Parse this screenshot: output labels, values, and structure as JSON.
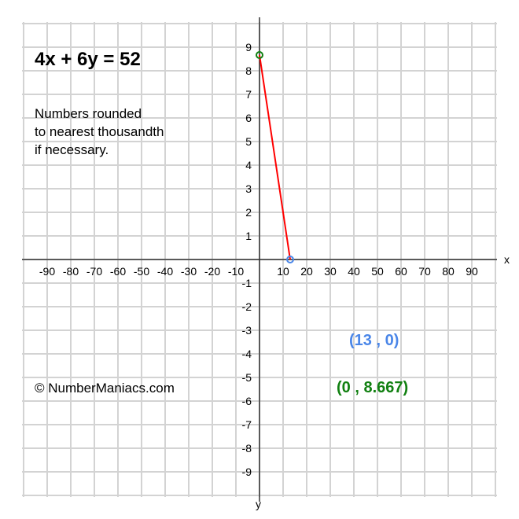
{
  "chart_data": {
    "type": "line",
    "title": "4x + 6y = 52",
    "note": [
      "Numbers rounded",
      "to nearest thousandth",
      "if necessary."
    ],
    "copyright": "© NumberManiacs.com",
    "xlabel": "x",
    "ylabel": "y",
    "xlim": [
      -100,
      100
    ],
    "ylim": [
      -10,
      10
    ],
    "x_ticks": [
      -90,
      -80,
      -70,
      -60,
      -50,
      -40,
      -30,
      -20,
      -10,
      10,
      20,
      30,
      40,
      50,
      60,
      70,
      80,
      90
    ],
    "y_ticks": [
      9,
      8,
      7,
      6,
      5,
      4,
      3,
      2,
      1,
      -1,
      -2,
      -3,
      -4,
      -5,
      -6,
      -7,
      -8,
      -9
    ],
    "grid": true,
    "series": [
      {
        "points": [
          [
            0,
            8.667
          ],
          [
            13,
            0
          ]
        ],
        "color": "#ff0000"
      }
    ],
    "points": [
      {
        "x": 13,
        "y": 0,
        "label": "(13 , 0)",
        "color": "#4a86e8"
      },
      {
        "x": 0,
        "y": 8.667,
        "label": "(0 , 8.667)",
        "color": "#118011"
      }
    ]
  }
}
